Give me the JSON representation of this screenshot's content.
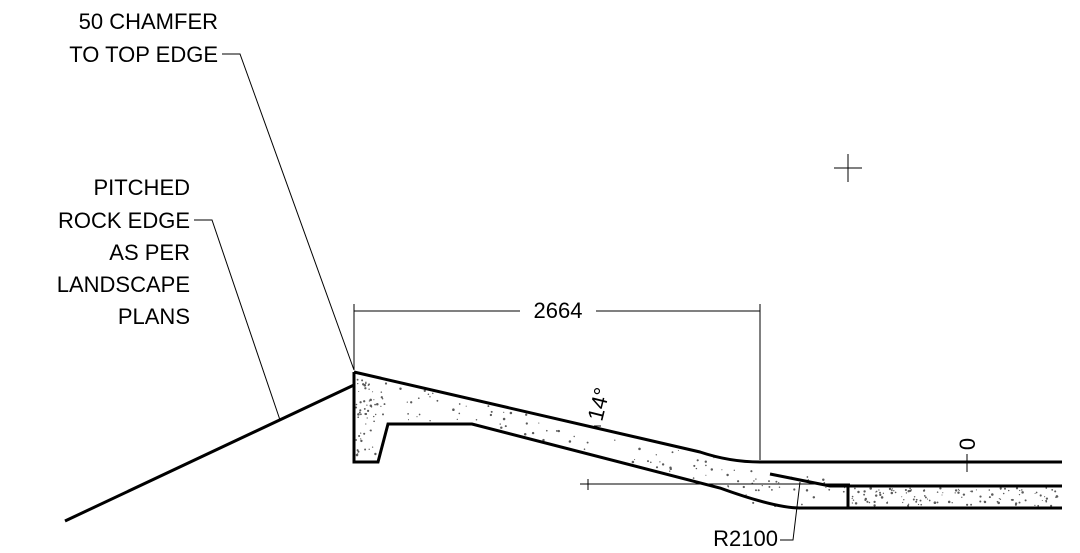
{
  "annotations": {
    "chamfer_line1": "50 CHAMFER",
    "chamfer_line2": "TO TOP EDGE",
    "rock_line1": "PITCHED",
    "rock_line2": "ROCK EDGE",
    "rock_line3": "AS PER",
    "rock_line4": "LANDSCAPE",
    "rock_line5": "PLANS"
  },
  "dimensions": {
    "width_label": "2664",
    "slope_label": "14°",
    "level_label": "0",
    "radius_label": "R2100"
  }
}
